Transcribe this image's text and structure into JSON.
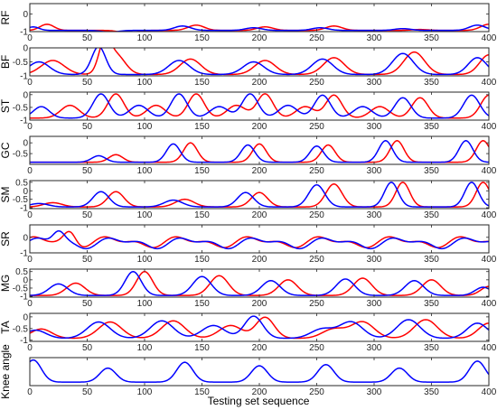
{
  "chart_data": {
    "type": "line",
    "xlabel": "Testing set sequence",
    "xlim": [
      0,
      400
    ],
    "xticks": [
      0,
      50,
      100,
      150,
      200,
      250,
      300,
      350,
      400
    ],
    "colors": {
      "red": "#ff0000",
      "blue": "#0000ff"
    },
    "panels": [
      {
        "ylabel": "RF",
        "ylim": [
          -1,
          0.6
        ],
        "yticks": [
          {
            "v": 0,
            "t": "0"
          },
          {
            "v": -1,
            "t": "-1"
          }
        ],
        "series": [
          {
            "color": "red",
            "shape": "bumps",
            "base": -0.93,
            "bumps": [
              [
                15,
                0.35,
                6
              ],
              [
                85,
                -0.15,
                7
              ],
              [
                145,
                0.3,
                7
              ],
              [
                205,
                0.2,
                7
              ],
              [
                265,
                0.25,
                7
              ],
              [
                340,
                0.05,
                7
              ],
              [
                400,
                0.35,
                7
              ]
            ]
          },
          {
            "color": "blue",
            "shape": "bumps",
            "base": -0.93,
            "bumps": [
              [
                3,
                0.2,
                5
              ],
              [
                70,
                -0.1,
                7
              ],
              [
                133,
                0.25,
                7
              ],
              [
                195,
                0.15,
                7
              ],
              [
                253,
                0.15,
                7
              ],
              [
                325,
                0.1,
                7
              ],
              [
                390,
                0.3,
                7
              ]
            ]
          }
        ]
      },
      {
        "ylabel": "BF",
        "ylim": [
          -1,
          0
        ],
        "yticks": [
          {
            "v": 0,
            "t": "0"
          },
          {
            "v": -0.5,
            "t": "-0.5"
          },
          {
            "v": -1,
            "t": "-1"
          }
        ],
        "series": [
          {
            "color": "red",
            "shape": "bumps",
            "base": -0.95,
            "bumps": [
              [
                20,
                0.5,
                10
              ],
              [
                65,
                1.0,
                5
              ],
              [
                75,
                0.7,
                8
              ],
              [
                140,
                0.55,
                9
              ],
              [
                205,
                0.5,
                9
              ],
              [
                265,
                0.6,
                9
              ],
              [
                335,
                0.8,
                9
              ],
              [
                400,
                0.7,
                8
              ]
            ]
          },
          {
            "color": "blue",
            "shape": "bumps",
            "base": -0.95,
            "bumps": [
              [
                8,
                0.45,
                9
              ],
              [
                60,
                1.0,
                6
              ],
              [
                130,
                0.5,
                9
              ],
              [
                195,
                0.45,
                9
              ],
              [
                255,
                0.55,
                9
              ],
              [
                325,
                0.75,
                9
              ],
              [
                390,
                0.6,
                8
              ]
            ]
          }
        ]
      },
      {
        "ylabel": "ST",
        "ylim": [
          -1,
          0.1
        ],
        "yticks": [
          {
            "v": 0,
            "t": "0"
          },
          {
            "v": -0.5,
            "t": "-0.5"
          },
          {
            "v": -1,
            "t": "-1"
          }
        ],
        "series": [
          {
            "color": "red",
            "shape": "bumps",
            "base": -0.92,
            "bumps": [
              [
                35,
                0.5,
                8
              ],
              [
                75,
                0.95,
                7
              ],
              [
                110,
                0.5,
                8
              ],
              [
                145,
                0.95,
                7
              ],
              [
                180,
                0.5,
                8
              ],
              [
                205,
                0.95,
                7
              ],
              [
                240,
                0.45,
                8
              ],
              [
                265,
                0.9,
                7
              ],
              [
                305,
                0.45,
                8
              ],
              [
                340,
                0.8,
                7
              ],
              [
                400,
                0.9,
                7
              ]
            ]
          },
          {
            "color": "blue",
            "shape": "bumps",
            "base": -0.92,
            "bumps": [
              [
                10,
                0.45,
                7
              ],
              [
                62,
                0.95,
                7
              ],
              [
                95,
                0.5,
                8
              ],
              [
                130,
                0.95,
                7
              ],
              [
                165,
                0.45,
                8
              ],
              [
                192,
                0.95,
                7
              ],
              [
                225,
                0.5,
                8
              ],
              [
                255,
                0.9,
                7
              ],
              [
                290,
                0.45,
                8
              ],
              [
                325,
                0.8,
                7
              ],
              [
                385,
                0.9,
                7
              ]
            ]
          }
        ]
      },
      {
        "ylabel": "GC",
        "ylim": [
          -1,
          0.3
        ],
        "yticks": [
          {
            "v": 0,
            "t": "0"
          },
          {
            "v": -0.5,
            "t": "-0.5"
          }
        ],
        "series": [
          {
            "color": "red",
            "shape": "bumps",
            "base": -0.9,
            "bumps": [
              [
                75,
                0.35,
                6
              ],
              [
                140,
                0.9,
                6
              ],
              [
                200,
                0.85,
                6
              ],
              [
                260,
                0.8,
                6
              ],
              [
                320,
                1.0,
                6
              ],
              [
                395,
                1.0,
                6
              ]
            ]
          },
          {
            "color": "blue",
            "shape": "bumps",
            "base": -0.9,
            "bumps": [
              [
                60,
                0.3,
                6
              ],
              [
                125,
                0.85,
                6
              ],
              [
                190,
                0.8,
                6
              ],
              [
                250,
                0.75,
                6
              ],
              [
                310,
                1.0,
                6
              ],
              [
                380,
                1.0,
                6
              ]
            ]
          }
        ]
      },
      {
        "ylabel": "SM",
        "ylim": [
          -1.05,
          0.6
        ],
        "yticks": [
          {
            "v": 0.5,
            "t": "0.5"
          },
          {
            "v": 0,
            "t": "0"
          },
          {
            "v": -0.5,
            "t": "-0.5"
          },
          {
            "v": -1,
            "t": "-1"
          }
        ],
        "series": [
          {
            "color": "red",
            "shape": "bumps",
            "base": -0.95,
            "bumps": [
              [
                20,
                0.25,
                8
              ],
              [
                75,
                0.9,
                7
              ],
              [
                135,
                0.45,
                8
              ],
              [
                200,
                0.85,
                7
              ],
              [
                265,
                1.35,
                7
              ],
              [
                325,
                1.45,
                6
              ],
              [
                395,
                1.45,
                6
              ]
            ]
          },
          {
            "color": "blue",
            "shape": "bumps",
            "base": -0.95,
            "bumps": [
              [
                8,
                0.2,
                8
              ],
              [
                62,
                0.9,
                7
              ],
              [
                125,
                0.4,
                8
              ],
              [
                188,
                0.85,
                7
              ],
              [
                250,
                1.3,
                7
              ],
              [
                315,
                1.45,
                6
              ],
              [
                385,
                1.45,
                6
              ]
            ]
          }
        ]
      },
      {
        "ylabel": "SR",
        "ylim": [
          -1,
          0.8
        ],
        "yticks": [
          {
            "v": 0,
            "t": "0"
          },
          {
            "v": -1,
            "t": "-1"
          }
        ],
        "series": [
          {
            "color": "red",
            "shape": "wave",
            "base": -0.3,
            "waves": [
              [
                0.25,
                62,
                0.6
              ],
              [
                0.15,
                31,
                1.4
              ]
            ],
            "bumps": [
              [
                35,
                0.75,
                5
              ]
            ]
          },
          {
            "color": "blue",
            "shape": "wave",
            "base": -0.35,
            "waves": [
              [
                0.25,
                62,
                0.1
              ],
              [
                0.15,
                31,
                0.8
              ]
            ],
            "bumps": [
              [
                25,
                0.7,
                5
              ]
            ]
          }
        ]
      },
      {
        "ylabel": "MG",
        "ylim": [
          -1.05,
          0.65
        ],
        "yticks": [
          {
            "v": 0.5,
            "t": "0.5"
          },
          {
            "v": 0,
            "t": "0"
          },
          {
            "v": -0.5,
            "t": "-0.5"
          },
          {
            "v": -1,
            "t": "-1"
          }
        ],
        "series": [
          {
            "color": "red",
            "shape": "bumps",
            "base": -0.95,
            "bumps": [
              [
                40,
                0.75,
                8
              ],
              [
                100,
                1.45,
                7
              ],
              [
                165,
                1.2,
                8
              ],
              [
                225,
                0.95,
                8
              ],
              [
                290,
                1.05,
                8
              ],
              [
                350,
                0.95,
                8
              ],
              [
                400,
                0.55,
                7
              ]
            ]
          },
          {
            "color": "blue",
            "shape": "bumps",
            "base": -0.95,
            "bumps": [
              [
                25,
                0.7,
                8
              ],
              [
                90,
                1.45,
                7
              ],
              [
                150,
                1.15,
                8
              ],
              [
                210,
                0.9,
                8
              ],
              [
                275,
                1.0,
                8
              ],
              [
                335,
                0.9,
                8
              ],
              [
                395,
                0.5,
                7
              ]
            ]
          }
        ]
      },
      {
        "ylabel": "TA",
        "ylim": [
          -1.05,
          0.15
        ],
        "yticks": [
          {
            "v": 0,
            "t": "0"
          },
          {
            "v": -0.5,
            "t": "-0.5"
          },
          {
            "v": -1,
            "t": "-1"
          }
        ],
        "series": [
          {
            "color": "red",
            "shape": "bumps",
            "base": -0.92,
            "bumps": [
              [
                10,
                0.4,
                9
              ],
              [
                70,
                0.7,
                10
              ],
              [
                125,
                0.75,
                10
              ],
              [
                175,
                0.55,
                10
              ],
              [
                205,
                0.9,
                8
              ],
              [
                265,
                0.4,
                10
              ],
              [
                290,
                0.7,
                10
              ],
              [
                345,
                0.8,
                10
              ],
              [
                400,
                0.65,
                9
              ]
            ]
          },
          {
            "color": "blue",
            "shape": "bumps",
            "base": -0.92,
            "bumps": [
              [
                5,
                0.35,
                9
              ],
              [
                60,
                0.7,
                10
              ],
              [
                115,
                0.75,
                10
              ],
              [
                160,
                0.55,
                10
              ],
              [
                195,
                0.95,
                8
              ],
              [
                255,
                0.4,
                10
              ],
              [
                280,
                0.7,
                10
              ],
              [
                330,
                0.8,
                10
              ],
              [
                390,
                0.65,
                9
              ]
            ]
          }
        ]
      },
      {
        "ylabel": "Knee angle",
        "ylim": [
          -1,
          0.2
        ],
        "yticks": [],
        "series": [
          {
            "color": "blue",
            "shape": "bumps",
            "base": -0.85,
            "bumps": [
              [
                3,
                0.95,
                7
              ],
              [
                68,
                0.6,
                7
              ],
              [
                135,
                0.85,
                7
              ],
              [
                200,
                0.7,
                7
              ],
              [
                258,
                0.75,
                7
              ],
              [
                322,
                0.6,
                7
              ],
              [
                390,
                0.9,
                7
              ]
            ]
          }
        ]
      }
    ]
  }
}
